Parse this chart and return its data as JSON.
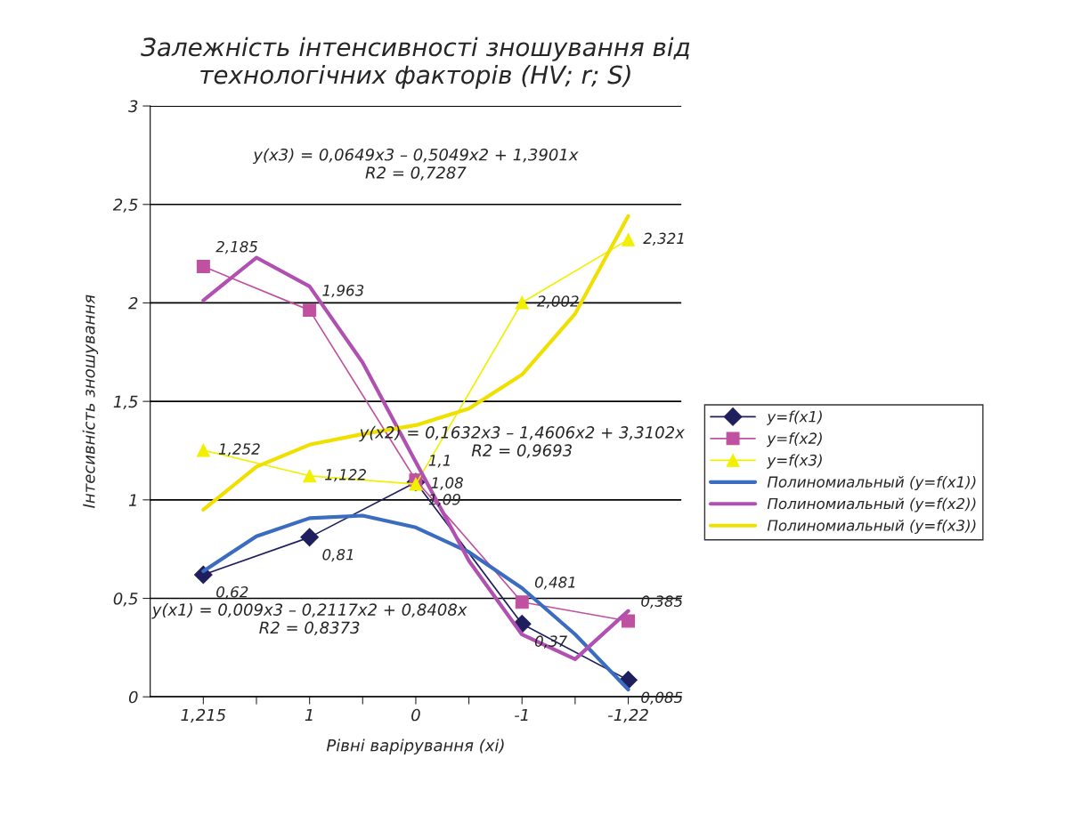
{
  "chart_data": {
    "type": "line",
    "title": "Залежність інтенсивності зношування від\nтехнологічних факторів (HV; r; S)",
    "xlabel": "Рівні варірування (xi)",
    "ylabel": "Інтесивність зношування",
    "categories": [
      "1,215",
      null,
      "1",
      null,
      "0",
      null,
      "-1",
      null,
      "-1,22"
    ],
    "ylim": [
      0,
      3
    ],
    "yticks": [
      0,
      {
        "value": 0.5,
        "label": "0,5"
      },
      1,
      {
        "value": 1.5,
        "label": "1,5"
      },
      2,
      {
        "value": 2.5,
        "label": "2,5"
      },
      3
    ],
    "grid": "y",
    "legend": "right",
    "series": [
      {
        "name": "y=f(x1)",
        "color": "#1f1f5f",
        "marker": "diamond",
        "values": [
          0.62,
          null,
          0.81,
          null,
          1.09,
          null,
          0.37,
          null,
          0.085
        ],
        "value_labels": [
          "0,62",
          null,
          "0,81",
          null,
          "1,09",
          null,
          "0,37",
          null,
          "0,085"
        ]
      },
      {
        "name": "y=f(x2)",
        "color": "#c050a0",
        "marker": "square",
        "values": [
          2.185,
          null,
          1.963,
          null,
          1.1,
          null,
          0.481,
          null,
          0.385
        ],
        "value_labels": [
          "2,185",
          null,
          "1,963",
          null,
          "1,1",
          null,
          "0,481",
          null,
          "0,385"
        ]
      },
      {
        "name": "y=f(x3)",
        "color": "#f0f000",
        "marker": "triangle",
        "values": [
          1.252,
          null,
          1.122,
          null,
          1.08,
          null,
          2.002,
          null,
          2.321
        ],
        "value_labels": [
          "1,252",
          null,
          "1,122",
          null,
          "1,08",
          null,
          "2,002",
          null,
          "2,321"
        ]
      },
      {
        "name": "Полиномиальный (y=f(x1))",
        "color": "#3a6cc0",
        "marker": "none",
        "values": [
          0.638,
          0.815,
          0.907,
          0.92,
          0.86,
          0.735,
          0.552,
          0.317,
          0.037
        ]
      },
      {
        "name": "Полиномиальный (y=f(x2))",
        "color": "#b050b0",
        "marker": "none",
        "values": [
          2.013,
          2.23,
          2.084,
          1.697,
          1.192,
          0.691,
          0.316,
          0.191,
          0.436
        ]
      },
      {
        "name": "Полиномиальный (y=f(x3))",
        "color": "#f0e000",
        "marker": "none",
        "values": [
          0.95,
          1.168,
          1.28,
          1.334,
          1.379,
          1.463,
          1.636,
          1.945,
          2.441
        ]
      }
    ],
    "annotations": [
      "y(x3) = 0,0649x3 – 0,5049x2 + 1,3901x\nR2 = 0,7287",
      "y(x2) = 0,1632x3 – 1,4606x2 + 3,3102x\nR2 = 0,9693",
      "y(x1) = 0,009x3 – 0,2117x2 + 0,8408x\nR2 = 0,8373"
    ]
  }
}
